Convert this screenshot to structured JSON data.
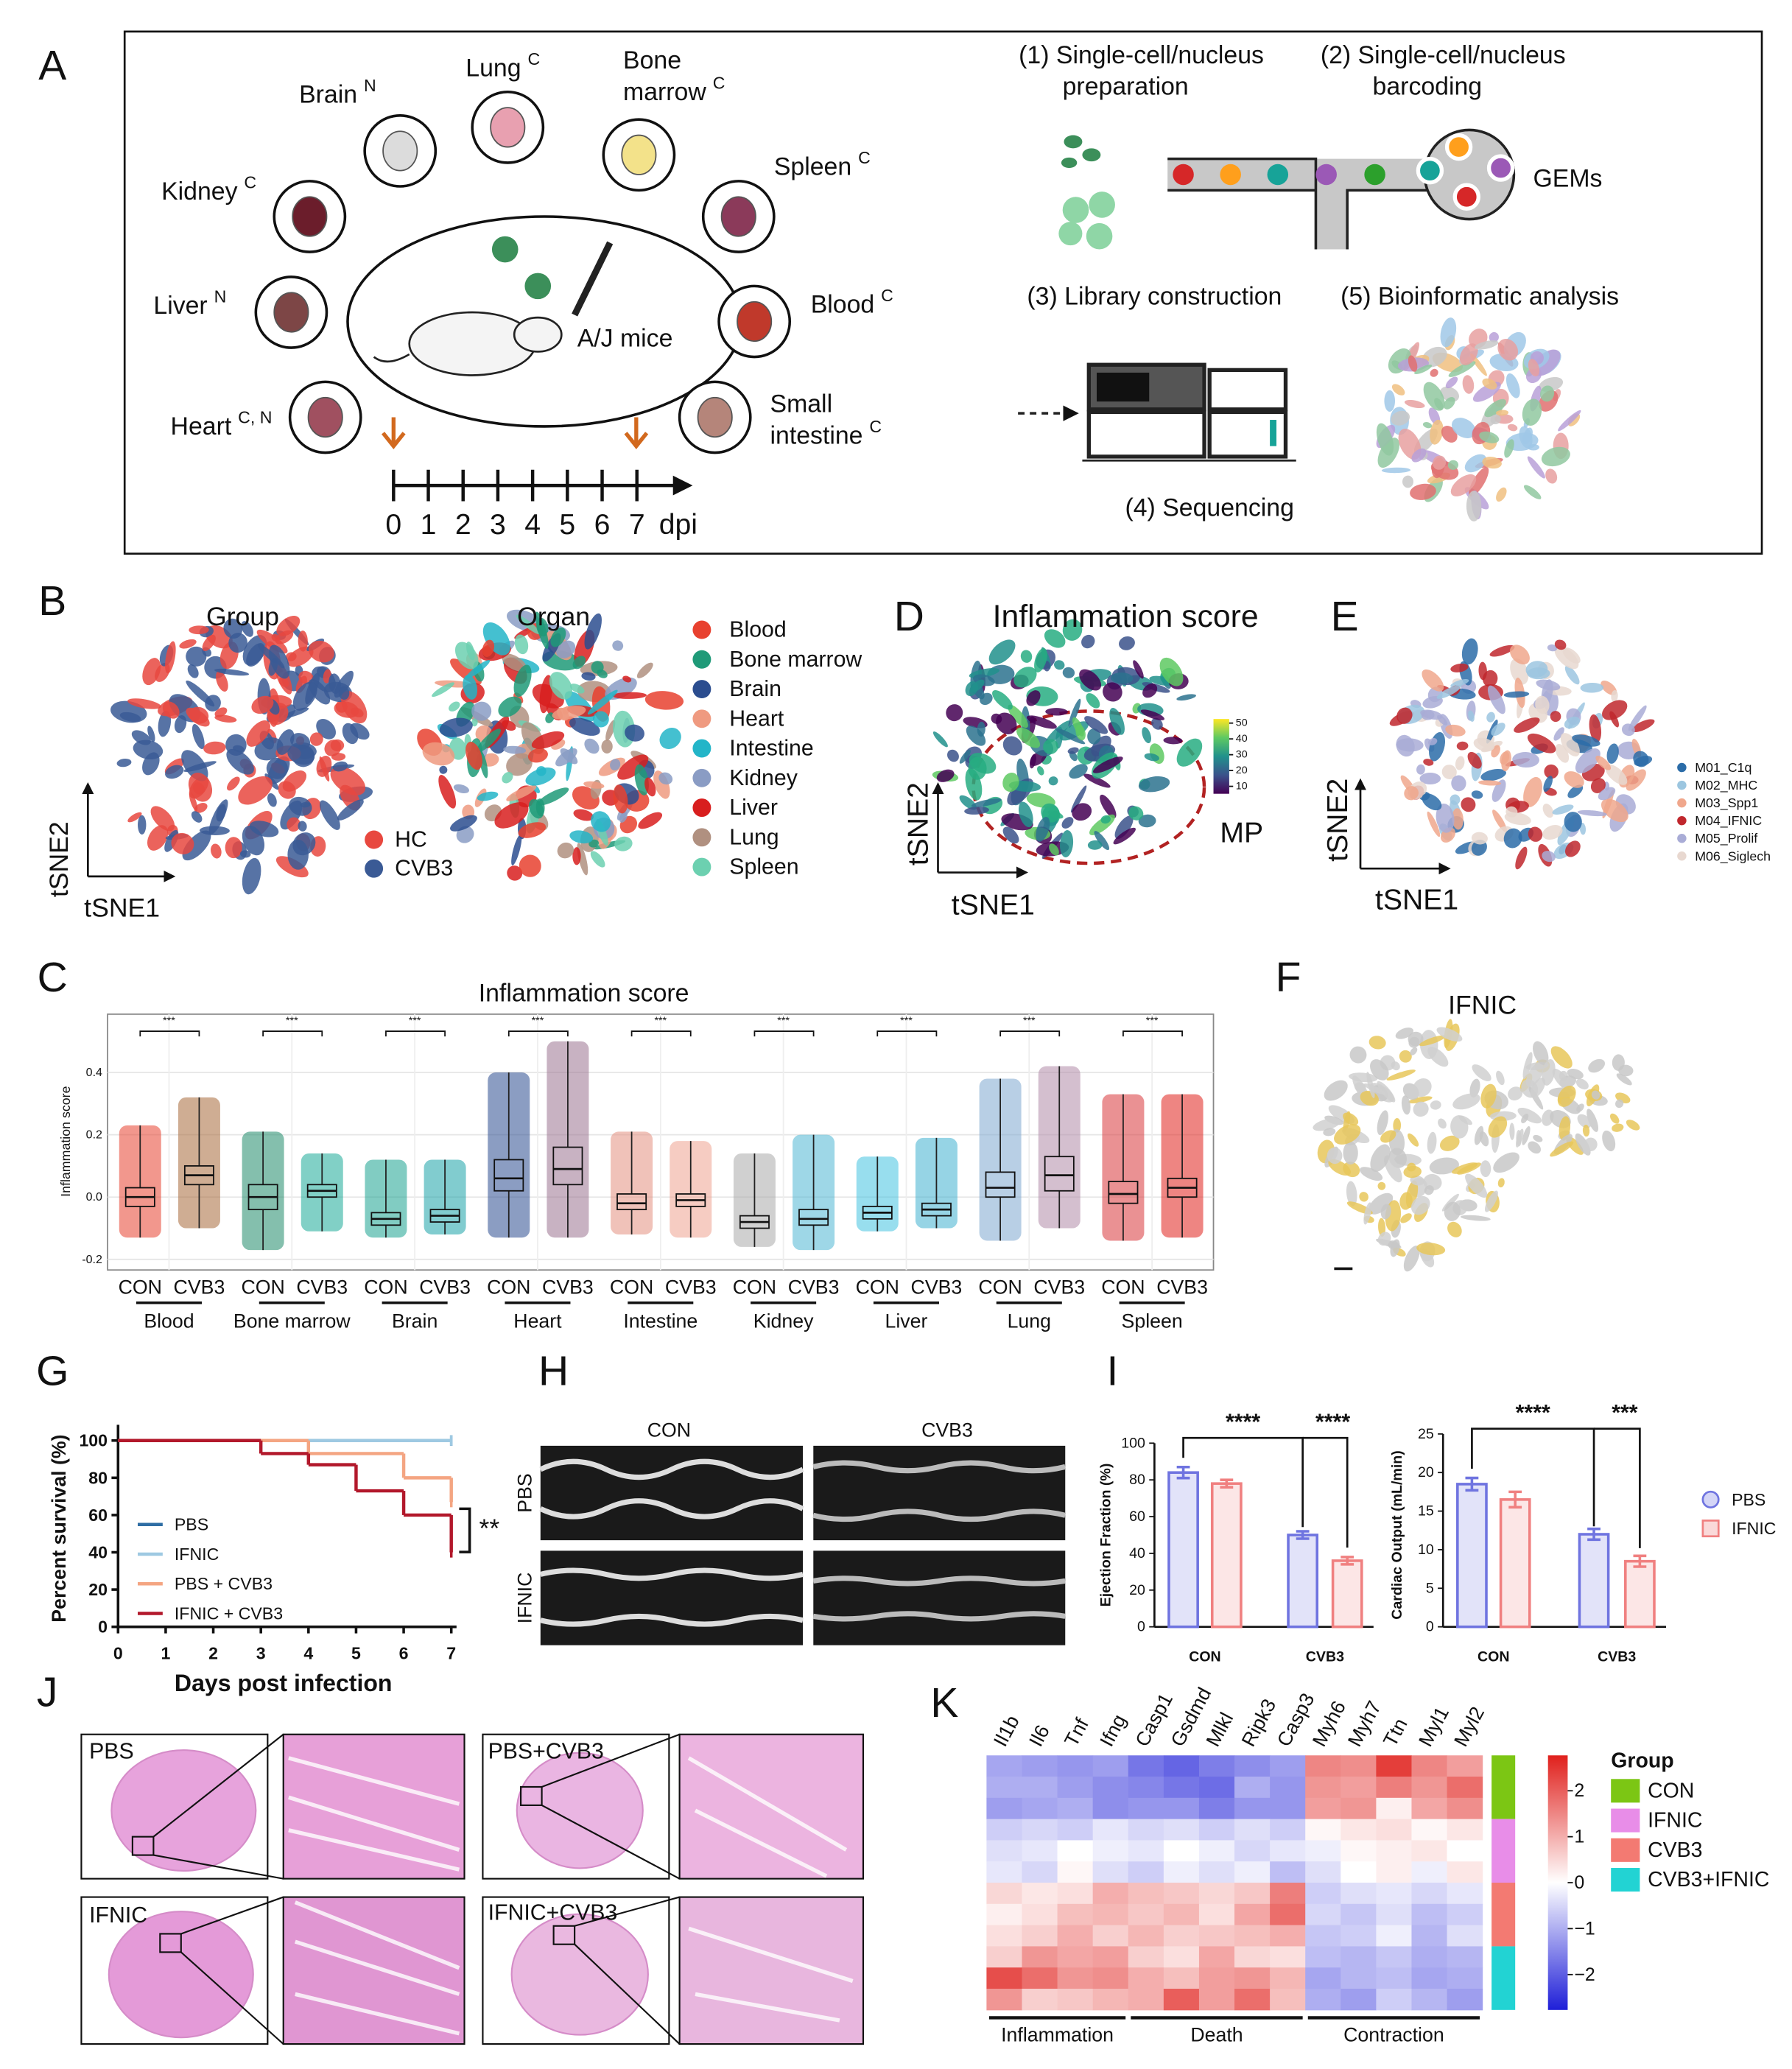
{
  "panel_labels": [
    "A",
    "B",
    "C",
    "D",
    "E",
    "F",
    "G",
    "H",
    "I",
    "J",
    "K"
  ],
  "a": {
    "organs": [
      {
        "lines": [
          "Brain"
        ],
        "mark": "N"
      },
      {
        "lines": [
          "Lung"
        ],
        "mark": "C"
      },
      {
        "lines": [
          "Bone",
          "marrow"
        ],
        "mark": "C"
      },
      {
        "lines": [
          "Spleen"
        ],
        "mark": "C"
      },
      {
        "lines": [
          "Blood"
        ],
        "mark": "C"
      },
      {
        "lines": [
          "Small",
          "intestine"
        ],
        "mark": "C"
      },
      {
        "lines": [
          "Kidney"
        ],
        "mark": "C"
      },
      {
        "lines": [
          "Liver"
        ],
        "mark": "N"
      },
      {
        "lines": [
          "Heart"
        ],
        "mark": "C, N"
      }
    ],
    "mouse": "A/J mice",
    "timeline": [
      0,
      1,
      2,
      3,
      4,
      5,
      6,
      7
    ],
    "unit": "dpi",
    "steps": [
      [
        "(1) Single-cell/nucleus",
        "preparation"
      ],
      [
        "(2) Single-cell/nucleus",
        "barcoding"
      ],
      [
        "(3) Library construction"
      ],
      [
        "(4) Sequencing"
      ],
      [
        "(5) Bioinformatic analysis"
      ]
    ],
    "gems": "GEMs"
  },
  "b": {
    "group_title": "Group",
    "organ_title": "Organ",
    "x_label": "tSNE1",
    "y_label": "tSNE2",
    "group_legend": [
      {
        "name": "HC",
        "color": "#e8483f"
      },
      {
        "name": "CVB3",
        "color": "#3a5a95"
      }
    ],
    "organ_legend": [
      {
        "name": "Blood",
        "color": "#e8412f"
      },
      {
        "name": "Bone marrow",
        "color": "#1f9a78"
      },
      {
        "name": "Brain",
        "color": "#2b4d8f"
      },
      {
        "name": "Heart",
        "color": "#ef9a80"
      },
      {
        "name": "Intestine",
        "color": "#23b5c8"
      },
      {
        "name": "Kidney",
        "color": "#8a9cc4"
      },
      {
        "name": "Liver",
        "color": "#d81e1e"
      },
      {
        "name": "Lung",
        "color": "#b09080"
      },
      {
        "name": "Spleen",
        "color": "#6cd0b0"
      }
    ]
  },
  "d": {
    "title": "Inflammation score",
    "colorbar_ticks": [
      10,
      20,
      30,
      40,
      50
    ],
    "clim": [
      5.3,
      52.6
    ],
    "region": "MP",
    "x_label": "tSNE1",
    "y_label": "tSNE2"
  },
  "e": {
    "legend": [
      {
        "name": "M01_C1q",
        "color": "#2b6ca8"
      },
      {
        "name": "M02_MHC",
        "color": "#9cc6e0"
      },
      {
        "name": "M03_Spp1",
        "color": "#f0a78c"
      },
      {
        "name": "M04_IFNIC",
        "color": "#c0272d"
      },
      {
        "name": "M05_Prolif",
        "color": "#a9acd6"
      },
      {
        "name": "M06_Siglech",
        "color": "#e8d8d0"
      }
    ],
    "x_label": "tSNE1",
    "y_label": "tSNE2"
  },
  "f": {
    "title": "IFNIC"
  },
  "h": {
    "columns": [
      "CON",
      "CVB3"
    ],
    "rows": [
      "PBS",
      "IFNIC"
    ]
  },
  "j": {
    "panels": [
      "PBS",
      "PBS+CVB3",
      "IFNIC",
      "IFNIC+CVB3"
    ]
  },
  "chart_data": [
    {
      "type": "box",
      "title": "Inflammation score",
      "y_label": "Inflammation score",
      "categories": [
        "Blood",
        "Bone marrow",
        "Brain",
        "Heart",
        "Intestine",
        "Kidney",
        "Liver",
        "Lung",
        "Spleen"
      ],
      "series": [
        {
          "name": "CON",
          "colors": [
            "#e8412f",
            "#1f8a6a",
            "#1aa38f",
            "#2b4d8f",
            "#e39080",
            "#a9a9a9",
            "#43c3e0",
            "#7ea8cf",
            "#d9363a"
          ],
          "min": [
            -0.13,
            -0.17,
            -0.13,
            -0.13,
            -0.12,
            -0.16,
            -0.11,
            -0.14,
            -0.14
          ],
          "q1": [
            -0.03,
            -0.04,
            -0.09,
            0.02,
            -0.04,
            -0.1,
            -0.07,
            0,
            -0.02
          ],
          "median": [
            0,
            0,
            -0.07,
            0.06,
            -0.02,
            -0.08,
            -0.05,
            0.03,
            0.01
          ],
          "q3": [
            0.03,
            0.04,
            -0.05,
            0.12,
            0.01,
            -0.06,
            -0.03,
            0.08,
            0.05
          ],
          "max": [
            0.23,
            0.21,
            0.12,
            0.4,
            0.21,
            0.14,
            0.13,
            0.38,
            0.33
          ]
        },
        {
          "name": "CVB3",
          "colors": [
            "#a86a3a",
            "#1aaa98",
            "#19a2a8",
            "#9a7290",
            "#eea38f",
            "#4fb7d3",
            "#3fb0d0",
            "#b08aa8",
            "#e0201c"
          ],
          "min": [
            -0.1,
            -0.11,
            -0.12,
            -0.13,
            -0.13,
            -0.17,
            -0.1,
            -0.1,
            -0.13
          ],
          "q1": [
            0.04,
            0,
            -0.08,
            0.04,
            -0.03,
            -0.09,
            -0.06,
            0.02,
            0
          ],
          "median": [
            0.07,
            0.02,
            -0.06,
            0.09,
            -0.01,
            -0.07,
            -0.04,
            0.07,
            0.03
          ],
          "q3": [
            0.1,
            0.04,
            -0.04,
            0.16,
            0.01,
            -0.04,
            -0.02,
            0.13,
            0.06
          ],
          "max": [
            0.32,
            0.14,
            0.12,
            0.5,
            0.18,
            0.2,
            0.19,
            0.42,
            0.33
          ]
        }
      ],
      "ylim": [
        -0.234,
        0.587
      ],
      "yticks": [
        -0.2,
        {
          "value": 0,
          "label": "0.0"
        },
        0.2,
        0.4
      ],
      "annotations": [
        "***",
        "***",
        "***",
        "***",
        "***",
        "***",
        "***",
        "***",
        "***"
      ],
      "grid": true
    },
    {
      "type": "line",
      "x_label": "Days post infection",
      "y_label": "Percent survival (%)",
      "xlim": [
        0,
        7
      ],
      "xticks": [
        0,
        1,
        2,
        3,
        4,
        5,
        6,
        7
      ],
      "ylim": [
        0,
        100
      ],
      "yticks": [
        0,
        20,
        40,
        60,
        80,
        100
      ],
      "legend": "lower left",
      "annotation": "**",
      "series": [
        {
          "name": "PBS",
          "color": "#2e6da4",
          "x": [
            0,
            7
          ],
          "values": [
            100,
            100
          ]
        },
        {
          "name": "IFNIC",
          "color": "#9ec9e2",
          "x": [
            0,
            7
          ],
          "values": [
            100,
            100
          ]
        },
        {
          "name": "PBS + CVB3",
          "color": "#f4a582",
          "x": [
            0,
            4,
            6,
            7
          ],
          "values": [
            100,
            93,
            80,
            67
          ]
        },
        {
          "name": "IFNIC + CVB3",
          "color": "#b2182b",
          "x": [
            0,
            3,
            4,
            5,
            6,
            7
          ],
          "values": [
            100,
            93,
            87,
            73,
            60,
            40
          ]
        }
      ]
    },
    {
      "type": "bar",
      "y_label": "Ejection Fraction (%)",
      "categories": [
        "CON",
        "CVB3"
      ],
      "ylim": [
        0,
        100
      ],
      "yticks": [
        0,
        20,
        40,
        60,
        80,
        100
      ],
      "annotations": [
        "****",
        "****"
      ],
      "series": [
        {
          "name": "PBS",
          "color": "#6f74e0",
          "values": [
            84,
            50
          ],
          "errors": [
            3,
            2
          ]
        },
        {
          "name": "IFNIC",
          "color": "#f08080",
          "values": [
            78,
            36
          ],
          "errors": [
            2,
            2
          ]
        }
      ]
    },
    {
      "type": "bar",
      "y_label": "Cardiac Output (mL/min)",
      "categories": [
        "CON",
        "CVB3"
      ],
      "ylim": [
        0,
        25
      ],
      "yticks": [
        0,
        5,
        10,
        15,
        20,
        25
      ],
      "annotations": [
        "****",
        "***"
      ],
      "series": [
        {
          "name": "PBS",
          "color": "#6f74e0",
          "values": [
            18.5,
            12
          ],
          "errors": [
            0.8,
            0.7
          ]
        },
        {
          "name": "IFNIC",
          "color": "#f08080",
          "values": [
            16.5,
            8.5
          ],
          "errors": [
            1,
            0.7
          ]
        }
      ]
    },
    {
      "type": "heatmap",
      "columns": [
        "Il1b",
        "Il6",
        "Tnf",
        "Ifng",
        "Casp1",
        "Gsdmd",
        "Mlkl",
        "Ripk3",
        "Casp3",
        "Myh6",
        "Myh7",
        "Ttn",
        "Myl1",
        "Myl2"
      ],
      "clim": [
        -2.77,
        2.77
      ],
      "colorbar_ticks": [
        2,
        1,
        0,
        {
          "value": -1,
          "label": "−1"
        },
        {
          "value": -2,
          "label": "−2"
        }
      ],
      "legend_title": "Group",
      "column_groups": [
        "Inflammation",
        "Death",
        "Contraction"
      ],
      "groups": [
        {
          "name": "CON",
          "color": "#7cc614",
          "rows": [
            [
              -1.1,
              -1.2,
              -1.3,
              -1.2,
              -1.7,
              -1.9,
              -1.6,
              -1.4,
              -1.2,
              1.5,
              1.4,
              2.4,
              1.5,
              1.2
            ],
            [
              -1.0,
              -1.0,
              -1.2,
              -1.4,
              -1.5,
              -1.7,
              -1.8,
              -1.0,
              -1.3,
              1.3,
              1.2,
              1.6,
              1.3,
              1.8
            ],
            [
              -1.2,
              -1.1,
              -1.0,
              -1.4,
              -1.3,
              -1.3,
              -1.6,
              -1.3,
              -1.3,
              1.2,
              1.3,
              0.2,
              1.1,
              1.4
            ]
          ]
        },
        {
          "name": "IFNIC",
          "color": "#e88de8",
          "rows": [
            [
              -0.6,
              -0.5,
              -0.6,
              -0.3,
              -0.5,
              -0.4,
              -0.6,
              -0.4,
              -0.6,
              0.1,
              0.3,
              0.4,
              0.1,
              0.3
            ],
            [
              -0.4,
              -0.3,
              0,
              -0.2,
              -0.3,
              0,
              -0.2,
              -0.5,
              -0.3,
              -0.2,
              0.1,
              0.2,
              0.3,
              0
            ],
            [
              -0.3,
              -0.5,
              0.1,
              -0.4,
              -0.6,
              -0.2,
              -0.4,
              -0.2,
              -0.8,
              -0.4,
              0,
              0.2,
              -0.2,
              0.3
            ]
          ]
        },
        {
          "name": "CVB3",
          "color": "#f37a72",
          "rows": [
            [
              0.5,
              0.3,
              0.4,
              1.0,
              0.8,
              0.7,
              0.5,
              0.7,
              1.6,
              -0.6,
              -0.4,
              -0.3,
              -0.5,
              -0.3
            ],
            [
              0.2,
              0.4,
              0.8,
              0.9,
              0.7,
              0.9,
              0.4,
              1.1,
              1.8,
              -0.5,
              -0.7,
              -0.4,
              -0.8,
              -0.6
            ],
            [
              0.4,
              0.6,
              1.0,
              0.6,
              0.9,
              0.6,
              0.7,
              0.8,
              1.0,
              -0.7,
              -0.6,
              -0.2,
              -0.9,
              -0.4
            ]
          ]
        },
        {
          "name": "CVB3+IFNIC",
          "color": "#22d3d3",
          "rows": [
            [
              0.6,
              1.3,
              1.1,
              1.2,
              0.6,
              0.4,
              1.1,
              0.5,
              0.4,
              -0.8,
              -0.9,
              -0.7,
              -1.0,
              -0.9
            ],
            [
              2.2,
              1.8,
              1.3,
              1.4,
              1.0,
              0.8,
              1.2,
              1.3,
              0.9,
              -1.1,
              -0.9,
              -0.8,
              -1.1,
              -1.0
            ],
            [
              1.3,
              0.6,
              0.7,
              0.9,
              1.0,
              2.0,
              1.2,
              1.8,
              0.8,
              -1.0,
              -1.2,
              -0.6,
              -0.9,
              -1.2
            ]
          ]
        }
      ]
    }
  ]
}
